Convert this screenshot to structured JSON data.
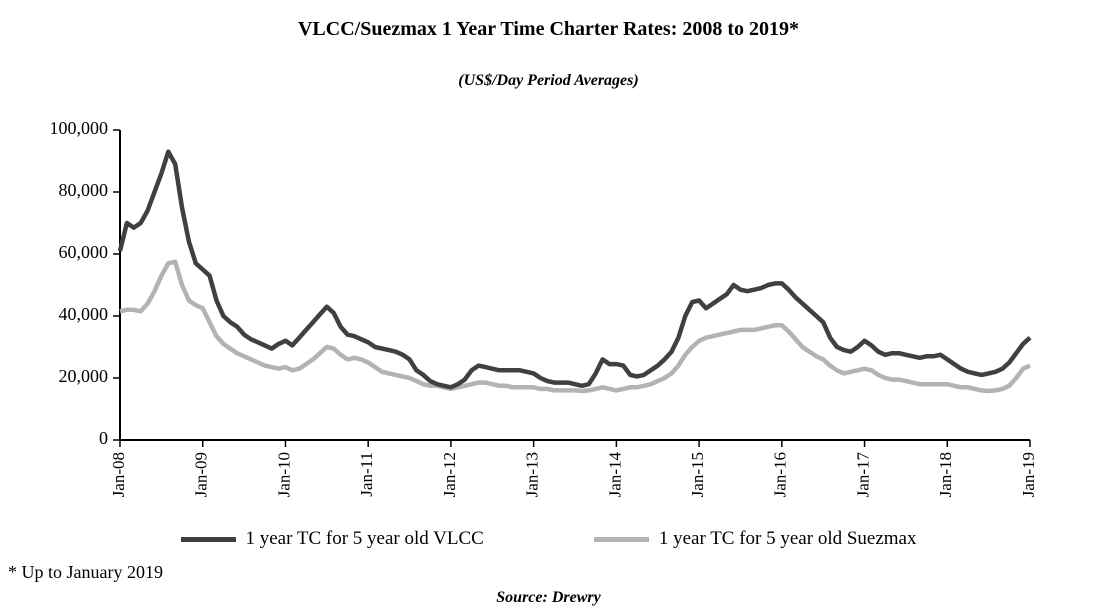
{
  "footnote": "* Up to January 2019",
  "source": "Source: Drewry",
  "chart_data": {
    "type": "line",
    "title": "VLCC/Suezmax 1 Year Time Charter Rates: 2008 to 2019*",
    "subtitle": "(US$/Day Period Averages)",
    "xlabel": "",
    "ylabel": "",
    "ylim": [
      0,
      100000
    ],
    "y_ticks": [
      0,
      20000,
      40000,
      60000,
      80000,
      100000
    ],
    "x_frequency": "monthly",
    "x_range": [
      "Jan-08",
      "Jan-19"
    ],
    "x_tick_labels": [
      "Jan-08",
      "Jan-09",
      "Jan-10",
      "Jan-11",
      "Jan-12",
      "Jan-13",
      "Jan-14",
      "Jan-15",
      "Jan-16",
      "Jan-17",
      "Jan-18",
      "Jan-19"
    ],
    "grid": false,
    "legend_position": "bottom",
    "axis_color": "#000000",
    "series": [
      {
        "id": "vlcc",
        "name": "1 year TC for 5 year old VLCC",
        "color": "#404040",
        "values": [
          61000,
          70000,
          68500,
          70000,
          74000,
          80000,
          86000,
          93000,
          89000,
          75000,
          64000,
          57000,
          55000,
          53000,
          45000,
          40000,
          38000,
          36500,
          34000,
          32500,
          31500,
          30500,
          29500,
          31000,
          32000,
          30500,
          33000,
          35500,
          38000,
          40500,
          43000,
          41000,
          36500,
          34000,
          33500,
          32500,
          31500,
          30000,
          29500,
          29000,
          28500,
          27500,
          26000,
          22500,
          21000,
          19000,
          18000,
          17500,
          17000,
          18000,
          19500,
          22500,
          24000,
          23500,
          23000,
          22500,
          22500,
          22500,
          22500,
          22000,
          21500,
          20000,
          19000,
          18500,
          18500,
          18500,
          18000,
          17500,
          18000,
          21500,
          26000,
          24500,
          24500,
          24000,
          21000,
          20500,
          21000,
          22500,
          24000,
          26000,
          28500,
          33000,
          40000,
          44500,
          45000,
          42500,
          44000,
          45500,
          47000,
          50000,
          48500,
          48000,
          48500,
          49000,
          50000,
          50500,
          50500,
          48500,
          46000,
          44000,
          42000,
          40000,
          38000,
          33000,
          30000,
          29000,
          28500,
          30000,
          32000,
          30500,
          28500,
          27500,
          28000,
          28000,
          27500,
          27000,
          26500,
          27000,
          27000,
          27500,
          26000,
          24500,
          23000,
          22000,
          21500,
          21000,
          21500,
          22000,
          23000,
          25000,
          28000,
          31000,
          33000
        ]
      },
      {
        "id": "suezmax",
        "name": "1 year TC for 5 year old Suezmax",
        "color": "#b3b3b3",
        "values": [
          41500,
          42000,
          42000,
          41500,
          44000,
          48000,
          53000,
          57000,
          57500,
          50000,
          45000,
          43500,
          42500,
          38000,
          33500,
          31000,
          29500,
          28000,
          27000,
          26000,
          25000,
          24000,
          23500,
          23000,
          23500,
          22500,
          23000,
          24500,
          26000,
          28000,
          30000,
          29500,
          27500,
          26000,
          26500,
          26000,
          25000,
          23500,
          22000,
          21500,
          21000,
          20500,
          20000,
          19000,
          18000,
          17500,
          17500,
          17000,
          16500,
          17000,
          17500,
          18000,
          18500,
          18500,
          18000,
          17500,
          17500,
          17000,
          17000,
          17000,
          17000,
          16500,
          16500,
          16000,
          16000,
          16000,
          16000,
          15800,
          16000,
          16500,
          17000,
          16500,
          16000,
          16500,
          17000,
          17000,
          17500,
          18000,
          19000,
          20000,
          21500,
          24000,
          27500,
          30000,
          32000,
          33000,
          33500,
          34000,
          34500,
          35000,
          35500,
          35500,
          35500,
          36000,
          36500,
          37000,
          37000,
          35000,
          32500,
          30000,
          28500,
          27000,
          26000,
          24000,
          22500,
          21500,
          22000,
          22500,
          23000,
          22500,
          21000,
          20000,
          19500,
          19500,
          19000,
          18500,
          18000,
          18000,
          18000,
          18000,
          18000,
          17500,
          17000,
          17000,
          16500,
          16000,
          15800,
          16000,
          16500,
          17500,
          20000,
          23000,
          24000
        ]
      }
    ]
  }
}
